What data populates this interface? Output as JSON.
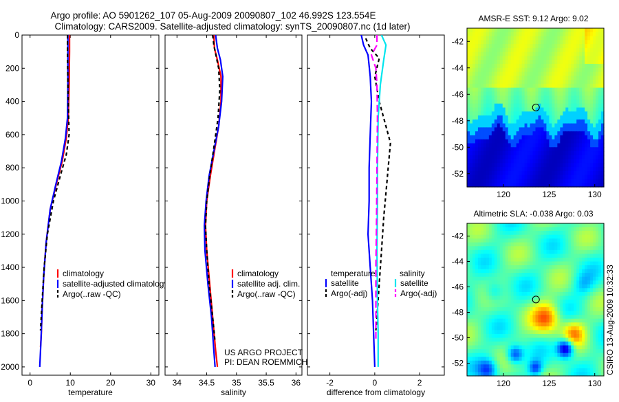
{
  "title_line1": "Argo profile: AO 5901262_107 05-Aug-2009 20090807_102 46.992S 123.554E",
  "title_line2": "Climatology: CARS2009. Satellite-adjusted climatology: synTS_20090807.nc (1d later)",
  "project_line1": "US ARGO PROJECT",
  "project_line2": "PI: DEAN ROEMMICH",
  "stamp": "CSIRO 13-Aug-2009 10:32:33",
  "colors": {
    "climatology": "#ff0000",
    "satellite": "#0000ff",
    "argo": "#000000",
    "cyan": "#00e5ee",
    "magenta": "#ff00ff"
  },
  "chart_data": [
    {
      "type": "line",
      "id": "temp",
      "xlabel": "temperature",
      "ylabel": "",
      "xlim": [
        -2,
        32
      ],
      "ylim": [
        2050,
        0
      ],
      "invert_y": true,
      "xticks": [
        0,
        10,
        20,
        30
      ],
      "xtick_labels": [
        "0",
        "10",
        "20",
        "30"
      ],
      "yticks": [
        0,
        200,
        400,
        600,
        800,
        1000,
        1200,
        1400,
        1600,
        1800,
        2000
      ],
      "ytick_labels": [
        "0",
        "200",
        "400",
        "600",
        "800",
        "1000",
        "1200",
        "1400",
        "1600",
        "1800",
        "2000"
      ],
      "legend": [
        "climatology",
        "satellite-adjusted climatology",
        "Argo(..raw -QC)"
      ],
      "series": [
        {
          "name": "climatology",
          "color": "#ff0000",
          "dash": "",
          "points": [
            [
              9.8,
              0
            ],
            [
              9.8,
              100
            ],
            [
              9.7,
              300
            ],
            [
              9.5,
              500
            ],
            [
              9.0,
              620
            ],
            [
              8.0,
              760
            ],
            [
              6.5,
              900
            ],
            [
              5.0,
              1050
            ],
            [
              4.0,
              1250
            ],
            [
              3.4,
              1450
            ],
            [
              3.0,
              1650
            ],
            [
              2.8,
              1800
            ],
            [
              2.6,
              1880
            ]
          ]
        },
        {
          "name": "satellite-adjusted climatology",
          "color": "#0000ff",
          "dash": "",
          "points": [
            [
              9.4,
              0
            ],
            [
              9.4,
              100
            ],
            [
              9.4,
              300
            ],
            [
              9.3,
              500
            ],
            [
              8.8,
              620
            ],
            [
              7.8,
              760
            ],
            [
              6.4,
              900
            ],
            [
              5.0,
              1050
            ],
            [
              4.0,
              1250
            ],
            [
              3.4,
              1450
            ],
            [
              3.0,
              1650
            ],
            [
              2.7,
              1850
            ],
            [
              2.4,
              2000
            ]
          ]
        },
        {
          "name": "Argo(..raw -QC)",
          "color": "#000000",
          "dash": "5,4",
          "points": [
            [
              9.3,
              0
            ],
            [
              9.3,
              100
            ],
            [
              9.4,
              300
            ],
            [
              9.6,
              500
            ],
            [
              9.7,
              600
            ],
            [
              9.0,
              720
            ],
            [
              7.5,
              850
            ],
            [
              5.8,
              1000
            ],
            [
              4.3,
              1200
            ],
            [
              3.5,
              1400
            ],
            [
              3.0,
              1600
            ],
            [
              2.6,
              1780
            ]
          ]
        }
      ]
    },
    {
      "type": "line",
      "id": "sal",
      "xlabel": "salinity",
      "ylabel": "",
      "xlim": [
        33.8,
        36.1
      ],
      "ylim": [
        2050,
        0
      ],
      "invert_y": true,
      "xticks": [
        34,
        34.5,
        35,
        35.5,
        36
      ],
      "xtick_labels": [
        "34",
        "34.5",
        "35",
        "35.5",
        "36"
      ],
      "legend": [
        "climatology",
        "satellite adj. clim.",
        "Argo(..raw -QC)"
      ],
      "series": [
        {
          "name": "climatology",
          "color": "#ff0000",
          "dash": "",
          "points": [
            [
              34.62,
              0
            ],
            [
              34.63,
              80
            ],
            [
              34.68,
              150
            ],
            [
              34.74,
              250
            ],
            [
              34.74,
              400
            ],
            [
              34.7,
              550
            ],
            [
              34.63,
              700
            ],
            [
              34.56,
              850
            ],
            [
              34.5,
              1000
            ],
            [
              34.48,
              1150
            ],
            [
              34.5,
              1300
            ],
            [
              34.55,
              1500
            ],
            [
              34.6,
              1700
            ],
            [
              34.65,
              1900
            ],
            [
              34.68,
              2000
            ]
          ]
        },
        {
          "name": "satellite adj. clim.",
          "color": "#0000ff",
          "dash": "",
          "points": [
            [
              34.65,
              0
            ],
            [
              34.68,
              80
            ],
            [
              34.73,
              150
            ],
            [
              34.77,
              250
            ],
            [
              34.75,
              400
            ],
            [
              34.7,
              550
            ],
            [
              34.62,
              700
            ],
            [
              34.54,
              850
            ],
            [
              34.49,
              1000
            ],
            [
              34.46,
              1150
            ],
            [
              34.47,
              1300
            ],
            [
              34.52,
              1500
            ],
            [
              34.58,
              1700
            ],
            [
              34.62,
              1900
            ],
            [
              34.64,
              2000
            ]
          ]
        },
        {
          "name": "Argo(..raw -QC)",
          "color": "#000000",
          "dash": "5,4",
          "points": [
            [
              34.6,
              0
            ],
            [
              34.62,
              60
            ],
            [
              34.66,
              130
            ],
            [
              34.7,
              200
            ],
            [
              34.72,
              330
            ],
            [
              34.69,
              500
            ],
            [
              34.62,
              680
            ],
            [
              34.55,
              850
            ],
            [
              34.5,
              1000
            ],
            [
              34.48,
              1150
            ],
            [
              34.5,
              1300
            ],
            [
              34.54,
              1500
            ],
            [
              34.6,
              1700
            ],
            [
              34.64,
              1850
            ]
          ]
        }
      ]
    },
    {
      "type": "line",
      "id": "diff",
      "xlabel": "difference from climatology",
      "ylabel": "",
      "xlim": [
        -3,
        3.1
      ],
      "ylim": [
        2050,
        0
      ],
      "invert_y": true,
      "xticks": [
        -2,
        0,
        2
      ],
      "xtick_labels": [
        "-2",
        "0",
        "2"
      ],
      "legend_headers": [
        "temperature",
        "salinity"
      ],
      "legend": [
        "satellite",
        "Argo(-adj)",
        "satellite",
        "Argo(-adj)"
      ],
      "series": [
        {
          "name": "temperature satellite",
          "color": "#0000ff",
          "dash": "",
          "points": [
            [
              -0.6,
              0
            ],
            [
              -0.5,
              60
            ],
            [
              -0.3,
              120
            ],
            [
              -0.2,
              250
            ],
            [
              -0.15,
              400
            ],
            [
              -0.2,
              600
            ],
            [
              -0.25,
              800
            ],
            [
              -0.25,
              1000
            ],
            [
              -0.3,
              1200
            ],
            [
              -0.2,
              1400
            ],
            [
              -0.1,
              1600
            ],
            [
              -0.05,
              1800
            ],
            [
              0,
              2000
            ]
          ]
        },
        {
          "name": "temperature Argo(-adj)",
          "color": "#000000",
          "dash": "5,4",
          "points": [
            [
              -0.4,
              20
            ],
            [
              -0.2,
              80
            ],
            [
              0.2,
              140
            ],
            [
              0.0,
              250
            ],
            [
              0.2,
              400
            ],
            [
              0.5,
              550
            ],
            [
              0.7,
              650
            ],
            [
              0.6,
              800
            ],
            [
              0.5,
              950
            ],
            [
              0.4,
              1100
            ],
            [
              0.3,
              1300
            ],
            [
              0.2,
              1500
            ],
            [
              0.1,
              1700
            ],
            [
              0.05,
              1780
            ]
          ]
        },
        {
          "name": "salinity satellite",
          "color": "#00e5ee",
          "dash": "",
          "points": [
            [
              0.3,
              0
            ],
            [
              0.5,
              60
            ],
            [
              0.4,
              150
            ],
            [
              0.25,
              300
            ],
            [
              0.15,
              500
            ],
            [
              0.12,
              800
            ],
            [
              0.12,
              1000
            ],
            [
              0.1,
              1300
            ],
            [
              0.12,
              1600
            ],
            [
              0.15,
              1800
            ],
            [
              0.15,
              2000
            ]
          ]
        },
        {
          "name": "salinity Argo(-adj)",
          "color": "#ff00ff",
          "dash": "10,5",
          "points": [
            [
              0.1,
              0
            ],
            [
              0.1,
              60
            ],
            [
              -0.15,
              120
            ],
            [
              0.05,
              200
            ],
            [
              0.1,
              300
            ],
            [
              0.12,
              500
            ],
            [
              0.1,
              800
            ],
            [
              0.08,
              1100
            ],
            [
              0.05,
              1400
            ],
            [
              0.05,
              1700
            ],
            [
              0.05,
              1850
            ]
          ]
        }
      ]
    },
    {
      "type": "heatmap",
      "id": "sst",
      "title": "AMSR-E SST: 9.12 Argo: 9.02",
      "xlim": [
        116,
        131
      ],
      "ylim": [
        -53,
        -41
      ],
      "xticks": [
        120,
        125,
        130
      ],
      "xtick_labels": [
        "120",
        "125",
        "130"
      ],
      "yticks": [
        -42,
        -44,
        -46,
        -48,
        -50,
        -52
      ],
      "ytick_labels": [
        "-42",
        "-44",
        "-46",
        "-48",
        "-50",
        "-52"
      ],
      "marker": [
        123.554,
        -46.992
      ]
    },
    {
      "type": "heatmap",
      "id": "sla",
      "title": "Altimetric SLA: -0.038 Argo: 0.03",
      "xlim": [
        116,
        131
      ],
      "ylim": [
        -53,
        -41
      ],
      "xticks": [
        120,
        125,
        130
      ],
      "xtick_labels": [
        "120",
        "125",
        "130"
      ],
      "yticks": [
        -42,
        -44,
        -46,
        -48,
        -50,
        -52
      ],
      "ytick_labels": [
        "-42",
        "-44",
        "-46",
        "-48",
        "-50",
        "-52"
      ],
      "marker": [
        123.554,
        -46.992
      ]
    }
  ]
}
